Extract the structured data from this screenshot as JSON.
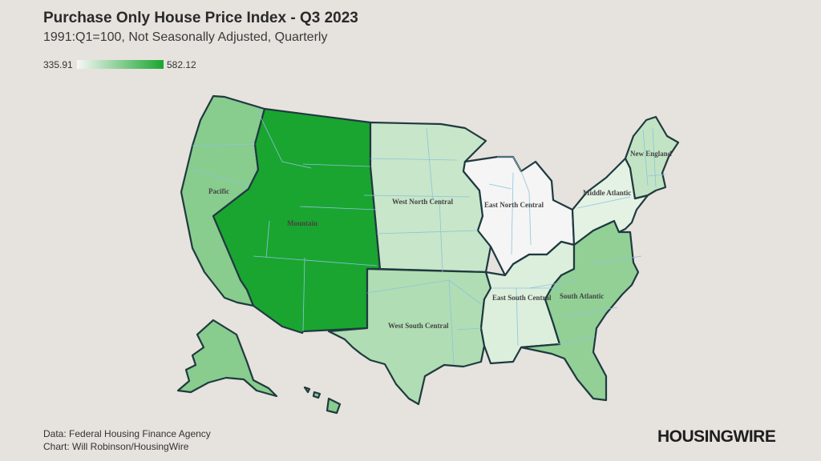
{
  "title": "Purchase Only House Price Index - Q3 2023",
  "subtitle": "1991:Q1=100, Not Seasonally Adjusted, Quarterly",
  "legend": {
    "min": "335.91",
    "max": "582.12",
    "color_min": "#f7f7f7",
    "color_max": "#1aa530"
  },
  "regions": {
    "pacific": {
      "label": "Pacific",
      "fill": "#88cc8e"
    },
    "mountain": {
      "label": "Mountain",
      "fill": "#1aa530"
    },
    "west_north_central": {
      "label": "West North Central",
      "fill": "#c8e6c9"
    },
    "west_south_central": {
      "label": "West South Central",
      "fill": "#b0ddb3"
    },
    "east_north_central": {
      "label": "East North Central",
      "fill": "#f5f5f5"
    },
    "east_south_central": {
      "label": "East South Central",
      "fill": "#dcefdc"
    },
    "south_atlantic": {
      "label": "South Atlantic",
      "fill": "#92d096"
    },
    "middle_atlantic": {
      "label": "Middle Atlantic",
      "fill": "#e4f2e4"
    },
    "new_england": {
      "label": "New England",
      "fill": "#c2e4c4"
    }
  },
  "source": {
    "line1": "Data: Federal Housing Finance Agency",
    "line2": "Chart: Will Robinson/HousingWire"
  },
  "brand": "HOUSINGWIRE"
}
